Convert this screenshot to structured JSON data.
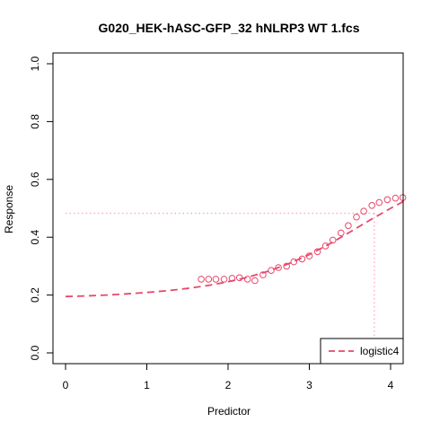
{
  "chart_data": {
    "type": "scatter",
    "title": "G020_HEK-hASC-GFP_32 hNLRP3 WT 1.fcs",
    "xlabel": "Predictor",
    "ylabel": "Response",
    "xlim": [
      0,
      4.2
    ],
    "ylim": [
      0,
      1.0
    ],
    "x_ticks": [
      0,
      1,
      2,
      3,
      4
    ],
    "y_ticks": [
      0.0,
      0.2,
      0.4,
      0.6,
      0.8,
      1.0
    ],
    "x_tick_labels": [
      "0",
      "1",
      "2",
      "3",
      "4"
    ],
    "y_tick_labels": [
      "0.0",
      "0.2",
      "0.4",
      "0.6",
      "0.8",
      "1.0"
    ],
    "grid": false,
    "series": [
      {
        "kind": "points",
        "marker": "open-circle",
        "color": "#E8476A",
        "x": [
          1.67,
          1.76,
          1.85,
          1.95,
          2.05,
          2.14,
          2.24,
          2.33,
          2.43,
          2.53,
          2.62,
          2.72,
          2.81,
          2.91,
          3.0,
          3.1,
          3.2,
          3.29,
          3.39,
          3.48,
          3.58,
          3.67,
          3.77,
          3.86,
          3.96,
          4.06,
          4.15
        ],
        "y": [
          0.255,
          0.255,
          0.255,
          0.255,
          0.258,
          0.26,
          0.255,
          0.25,
          0.27,
          0.285,
          0.295,
          0.3,
          0.315,
          0.325,
          0.335,
          0.35,
          0.37,
          0.39,
          0.415,
          0.44,
          0.47,
          0.49,
          0.51,
          0.52,
          0.53,
          0.535,
          0.537
        ]
      },
      {
        "kind": "fit-line",
        "name": "logistic4",
        "line_style": "dashed",
        "color": "#E8476A",
        "x": [
          0,
          0.25,
          0.5,
          0.75,
          1.0,
          1.25,
          1.5,
          1.75,
          2.0,
          2.25,
          2.5,
          2.75,
          3.0,
          3.25,
          3.5,
          3.75,
          4.0,
          4.2
        ],
        "y": [
          0.195,
          0.197,
          0.2,
          0.204,
          0.209,
          0.215,
          0.223,
          0.233,
          0.246,
          0.262,
          0.283,
          0.309,
          0.34,
          0.377,
          0.418,
          0.46,
          0.5,
          0.53
        ]
      }
    ],
    "reference_lines": {
      "color": "#FF9EAF",
      "line_style": "dotted",
      "response_level": 0.483,
      "predictor_at_level": 3.8
    },
    "legend": {
      "position": "bottom-right",
      "entries": [
        {
          "label": "logistic4",
          "color": "#E8476A",
          "line_style": "dashed"
        }
      ]
    }
  }
}
